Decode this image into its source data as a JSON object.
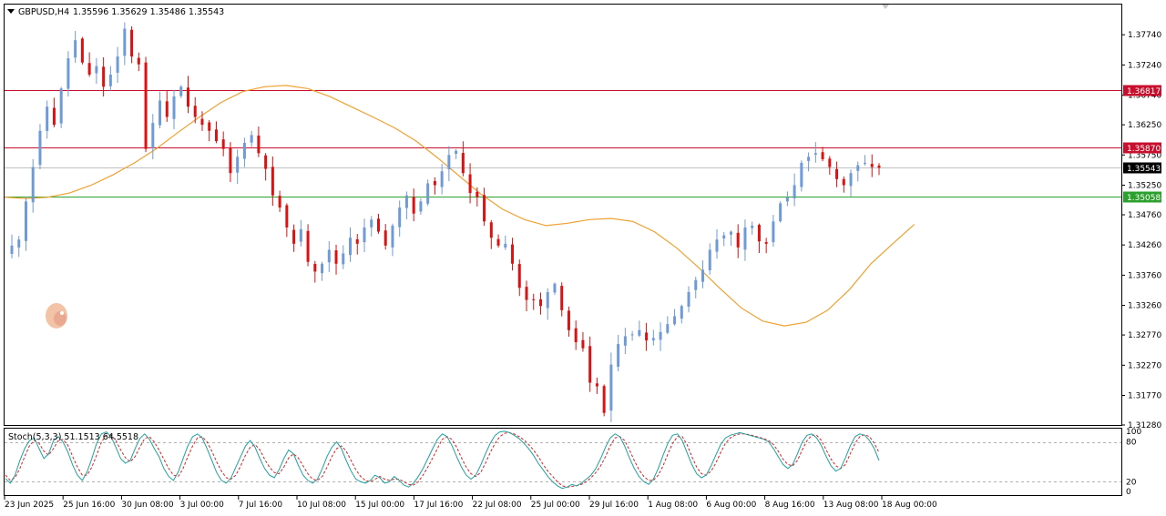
{
  "header": {
    "symbol": "GBPUSD,H4",
    "ohlc": "1.35596 1.35629 1.35486 1.35543"
  },
  "stoch_header": "Stoch(5,3,3) 51.1513 64.5518",
  "chart_data": {
    "type": "candlestick",
    "symbol": "GBPUSD",
    "timeframe": "H4",
    "ylim": [
      1.3128,
      1.3824
    ],
    "y_ticks": [
      "1.37740",
      "1.37240",
      "1.36740",
      "1.36250",
      "1.35750",
      "1.35250",
      "1.34760",
      "1.34260",
      "1.33760",
      "1.33260",
      "1.32770",
      "1.32270",
      "1.31770",
      "1.31280"
    ],
    "x_ticks": [
      "23 Jun 2025",
      "25 Jun 16:00",
      "30 Jun 08:00",
      "3 Jul 00:00",
      "7 Jul 16:00",
      "10 Jul 08:00",
      "15 Jul 00:00",
      "17 Jul 16:00",
      "22 Jul 08:00",
      "25 Jul 00:00",
      "29 Jul 16:00",
      "1 Aug 08:00",
      "6 Aug 00:00",
      "8 Aug 16:00",
      "13 Aug 08:00",
      "18 Aug 00:00"
    ],
    "bull_color": "#6f9ad8",
    "bear_color": "#dd1111",
    "ma_color": "#f0a030",
    "levels": [
      {
        "price": 1.36817,
        "label": "1.36817",
        "color": "#c8102e"
      },
      {
        "price": 1.3587,
        "label": "1.35870",
        "color": "#c8102e"
      },
      {
        "price": 1.35543,
        "label": "1.35543",
        "color": "#000000"
      },
      {
        "price": 1.35058,
        "label": "1.35058",
        "color": "#2ca02c"
      }
    ],
    "close_path": [
      1.3425,
      1.3435,
      1.3498,
      1.3555,
      1.3615,
      1.3655,
      1.3625,
      1.3685,
      1.3735,
      1.3765,
      1.3728,
      1.3708,
      1.3722,
      1.3688,
      1.3708,
      1.3738,
      1.3784,
      1.3738,
      1.3725,
      1.3585,
      1.3628,
      1.3665,
      1.3638,
      1.3672,
      1.3688,
      1.3655,
      1.3638,
      1.3625,
      1.3615,
      1.3598,
      1.3585,
      1.3545,
      1.3572,
      1.3595,
      1.3608,
      1.3578,
      1.3552,
      1.3508,
      1.3488,
      1.3455,
      1.3428,
      1.3452,
      1.3398,
      1.3382,
      1.3395,
      1.3418,
      1.3395,
      1.3412,
      1.3438,
      1.3428,
      1.3455,
      1.3468,
      1.3448,
      1.3425,
      1.3458,
      1.3488,
      1.3508,
      1.3478,
      1.3498,
      1.3528,
      1.3525,
      1.3548,
      1.3575,
      1.3582,
      1.3545,
      1.3512,
      1.3505,
      1.3465,
      1.3438,
      1.3425,
      1.3428,
      1.3395,
      1.3355,
      1.3335,
      1.3335,
      1.3325,
      1.3348,
      1.3362,
      1.3318,
      1.3285,
      1.3265,
      1.3255,
      1.3198,
      1.3192,
      1.3148,
      1.3228,
      1.3262,
      1.3275,
      1.3278,
      1.3285,
      1.3268,
      1.3272,
      1.3282,
      1.3295,
      1.3308,
      1.3325,
      1.3348,
      1.3368,
      1.3385,
      1.3418,
      1.3435,
      1.3442,
      1.3448,
      1.3422,
      1.3455,
      1.3458,
      1.3432,
      1.3428,
      1.3465,
      1.3495,
      1.3505,
      1.3525,
      1.3562,
      1.3572,
      1.3578,
      1.3568,
      1.3555,
      1.3535,
      1.3525,
      1.3545,
      1.3558,
      1.3562,
      1.3555,
      1.3554
    ],
    "ma_path": [
      1.3505,
      1.3503,
      1.3505,
      1.3512,
      1.3525,
      1.3542,
      1.3562,
      1.3585,
      1.3612,
      1.3638,
      1.3662,
      1.368,
      1.3688,
      1.369,
      1.3685,
      1.3672,
      1.3655,
      1.3638,
      1.362,
      1.3598,
      1.357,
      1.354,
      1.351,
      1.3485,
      1.3468,
      1.3458,
      1.3462,
      1.3468,
      1.347,
      1.3465,
      1.3448,
      1.3422,
      1.339,
      1.3355,
      1.3322,
      1.33,
      1.3292,
      1.3298,
      1.3318,
      1.3352,
      1.3395,
      1.3428,
      1.346
    ],
    "ma_range": [
      0,
      129
    ],
    "stoch_ylim": [
      0,
      100
    ],
    "stoch_ticks": [
      "100",
      "80",
      "20",
      "0"
    ],
    "stoch_levels": [
      80,
      20
    ],
    "stoch_main_color": "#20a0a0",
    "stoch_signal_color": "#dd2222",
    "stoch_main": [
      25,
      18,
      30,
      52,
      70,
      82,
      86,
      70,
      55,
      62,
      82,
      88,
      80,
      65,
      45,
      30,
      22,
      35,
      55,
      78,
      92,
      95,
      88,
      72,
      55,
      48,
      52,
      70,
      85,
      92,
      84,
      70,
      58,
      40,
      28,
      22,
      35,
      55,
      74,
      88,
      92,
      86,
      70,
      52,
      34,
      22,
      18,
      26,
      42,
      58,
      74,
      82,
      72,
      55,
      40,
      30,
      26,
      38,
      55,
      68,
      62,
      45,
      30,
      22,
      18,
      24,
      40,
      58,
      72,
      80,
      70,
      52,
      36,
      24,
      20,
      18,
      22,
      30,
      26,
      18,
      20,
      28,
      22,
      15,
      12,
      18,
      28,
      40,
      55,
      70,
      84,
      92,
      88,
      75,
      58,
      42,
      30,
      24,
      30,
      45,
      62,
      78,
      90,
      95,
      96,
      94,
      90,
      85,
      78,
      70,
      60,
      48,
      38,
      28,
      20,
      14,
      10,
      12,
      16,
      14,
      18,
      24,
      30,
      40,
      55,
      72,
      86,
      92,
      88,
      74,
      56,
      40,
      28,
      20,
      16,
      24,
      40,
      60,
      78,
      90,
      92,
      82,
      64,
      46,
      32,
      26,
      30,
      44,
      60,
      76,
      86,
      90,
      92,
      94,
      92,
      90,
      88,
      86,
      84,
      80,
      70,
      58,
      46,
      40,
      46,
      62,
      80,
      90,
      92,
      86,
      74,
      58,
      44,
      36,
      40,
      56,
      74,
      88,
      92,
      90,
      82,
      70,
      52
    ],
    "stoch_signal": [
      30,
      22,
      26,
      40,
      58,
      74,
      82,
      78,
      66,
      60,
      70,
      82,
      84,
      75,
      58,
      42,
      30,
      30,
      42,
      60,
      80,
      90,
      90,
      82,
      68,
      56,
      50,
      58,
      72,
      85,
      88,
      80,
      68,
      54,
      40,
      30,
      28,
      40,
      58,
      74,
      86,
      88,
      80,
      66,
      50,
      36,
      26,
      24,
      30,
      44,
      60,
      72,
      76,
      68,
      54,
      42,
      34,
      32,
      42,
      56,
      62,
      56,
      44,
      32,
      24,
      22,
      28,
      42,
      58,
      70,
      74,
      66,
      52,
      38,
      28,
      22,
      20,
      24,
      28,
      24,
      22,
      24,
      24,
      20,
      16,
      15,
      20,
      30,
      42,
      56,
      70,
      84,
      88,
      84,
      72,
      56,
      42,
      32,
      28,
      34,
      48,
      64,
      78,
      88,
      93,
      94,
      92,
      88,
      83,
      76,
      68,
      58,
      46,
      36,
      28,
      20,
      14,
      12,
      13,
      14,
      16,
      20,
      26,
      34,
      44,
      58,
      74,
      86,
      88,
      82,
      68,
      52,
      38,
      28,
      22,
      22,
      30,
      44,
      62,
      78,
      88,
      88,
      76,
      58,
      42,
      32,
      30,
      36,
      48,
      64,
      78,
      86,
      90,
      92,
      92,
      91,
      89,
      87,
      85,
      82,
      76,
      66,
      54,
      46,
      44,
      52,
      68,
      82,
      90,
      90,
      82,
      68,
      54,
      44,
      40,
      46,
      62,
      78,
      88,
      91,
      88,
      78,
      64
    ]
  }
}
